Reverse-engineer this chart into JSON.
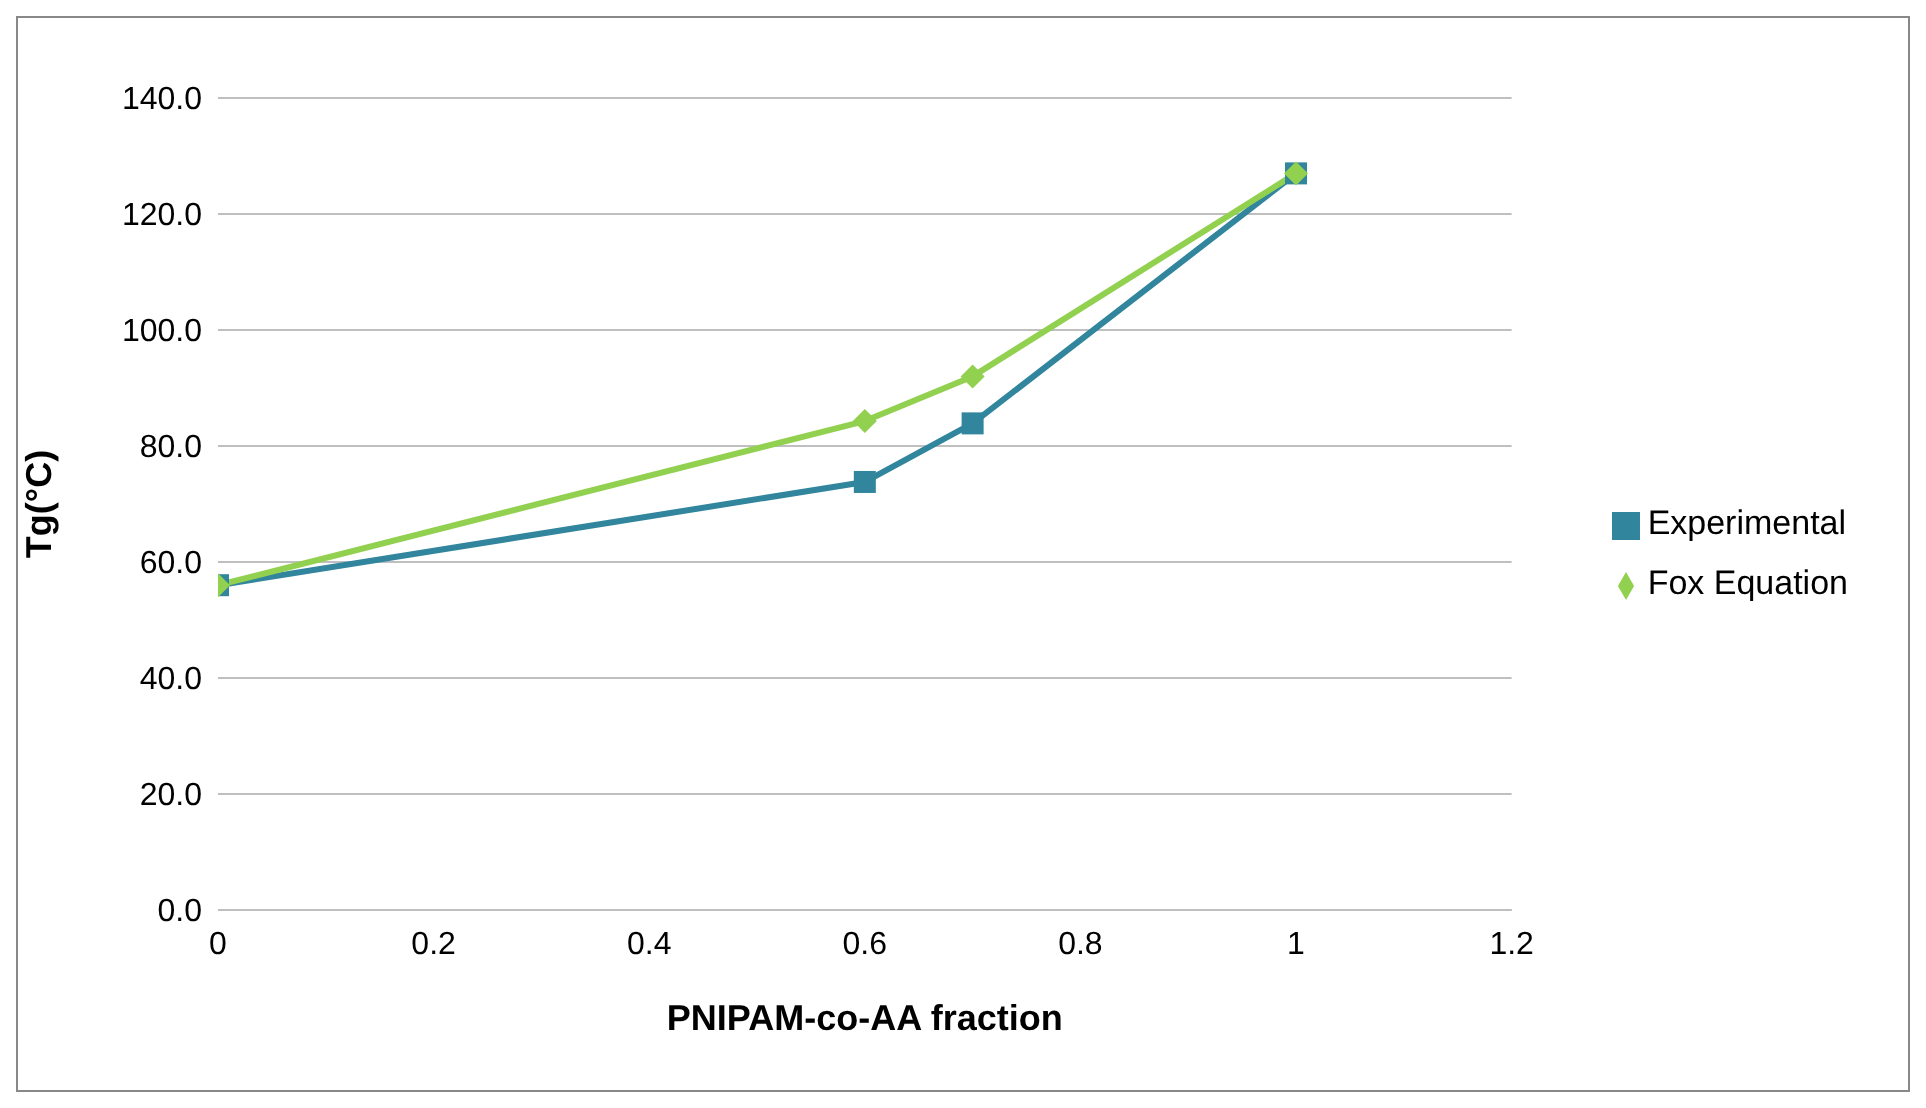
{
  "chart_data": {
    "type": "line",
    "xlabel": "PNIPAM-co-AA fraction",
    "ylabel": "Tg(°C)",
    "xlim": [
      0,
      1.2
    ],
    "xticks": [
      0,
      {
        "value": 0.2,
        "label": "0.2"
      },
      {
        "value": 0.4,
        "label": "0.4"
      },
      {
        "value": 0.6,
        "label": "0.6"
      },
      {
        "value": 0.8,
        "label": "0.8"
      },
      1,
      {
        "value": 1.2,
        "label": "1.2"
      }
    ],
    "ylim": [
      0,
      140
    ],
    "yticks": [
      {
        "value": 0,
        "label": "0.0"
      },
      {
        "value": 20,
        "label": "20.0"
      },
      {
        "value": 40,
        "label": "40.0"
      },
      {
        "value": 60,
        "label": "60.0"
      },
      {
        "value": 80,
        "label": "80.0"
      },
      {
        "value": 100,
        "label": "100.0"
      },
      {
        "value": 120,
        "label": "120.0"
      },
      {
        "value": 140,
        "label": "140.0"
      }
    ],
    "x": [
      0,
      0.6,
      0.7,
      1
    ],
    "grid": "y",
    "legend": "right",
    "line_style": "solid",
    "series": [
      {
        "name": "Fox Equation",
        "color": "#92d050",
        "marker": "diamond",
        "values": [
          56,
          84.3,
          92,
          127
        ]
      },
      {
        "name": "Experimental",
        "color": "#31859c",
        "marker": "square",
        "values": [
          56,
          73.8,
          83.9,
          127
        ]
      }
    ]
  }
}
